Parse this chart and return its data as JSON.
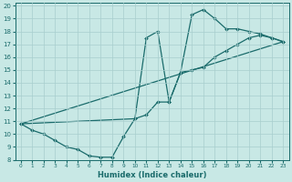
{
  "xlabel": "Humidex (Indice chaleur)",
  "xlim": [
    -0.5,
    23.5
  ],
  "ylim": [
    8,
    20.2
  ],
  "yticks": [
    8,
    9,
    10,
    11,
    12,
    13,
    14,
    15,
    16,
    17,
    18,
    19,
    20
  ],
  "xticks": [
    0,
    1,
    2,
    3,
    4,
    5,
    6,
    7,
    8,
    9,
    10,
    11,
    12,
    13,
    14,
    15,
    16,
    17,
    18,
    19,
    20,
    21,
    22,
    23
  ],
  "bg_color": "#c8e8e5",
  "line_color": "#1a6b6b",
  "grid_color": "#a8cece",
  "line1_x": [
    0,
    1,
    2,
    3,
    4,
    5,
    6,
    7,
    8,
    9,
    10,
    11,
    12,
    13,
    14,
    15,
    16,
    17,
    18,
    19,
    20,
    21,
    22,
    23
  ],
  "line1_y": [
    10.8,
    10.3,
    10.0,
    9.5,
    9.0,
    8.8,
    8.3,
    8.2,
    8.2,
    9.8,
    11.2,
    11.5,
    12.5,
    12.5,
    14.8,
    15.0,
    15.2,
    16.0,
    16.5,
    17.0,
    17.5,
    17.7,
    17.5,
    17.2
  ],
  "line2_x": [
    0,
    23
  ],
  "line2_y": [
    10.8,
    17.2
  ],
  "line3_x": [
    0,
    10,
    11,
    12,
    13,
    14,
    15,
    16,
    17,
    18,
    19,
    20,
    21,
    22,
    23
  ],
  "line3_y": [
    10.8,
    11.2,
    17.5,
    18.0,
    12.5,
    14.8,
    19.3,
    19.7,
    19.0,
    18.2,
    18.2,
    18.0,
    17.8,
    17.5,
    17.2
  ]
}
